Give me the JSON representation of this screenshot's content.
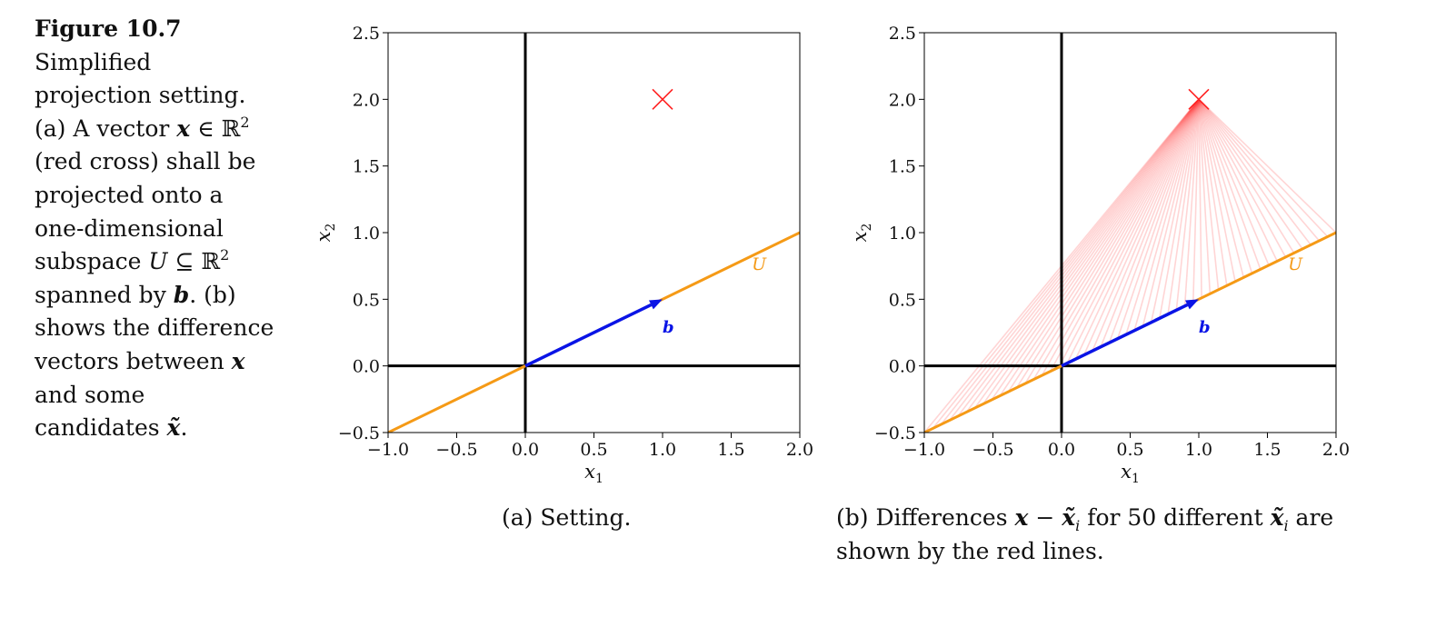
{
  "figure": {
    "label": "Figure 10.7",
    "caption_lines": [
      "Simplified",
      "projection setting."
    ],
    "caption_parts": {
      "a_prefix": "(a) A vector ",
      "x": "x",
      "in_r2": " ∈ ℝ",
      "sup2": "2",
      "l3": "(red cross) shall be",
      "l4": "projected onto a",
      "l5": "one-dimensional",
      "l6_pre": "subspace ",
      "U": "U",
      "subset": " ⊆ ℝ",
      "l7_pre": "spanned by ",
      "b": "b",
      "l7_post": ". (b)",
      "l8": "shows the difference",
      "l9_pre": "vectors between ",
      "l10": "and some",
      "l11_pre": "candidates ",
      "xt": "x̃",
      "period": "."
    }
  },
  "subcaptions": {
    "a": "(a) Setting.",
    "b_pre": "(b) Differences ",
    "b_x": "x",
    "b_minus": " − ",
    "b_xt": "x̃",
    "b_i": "i",
    "b_mid": " for 50 different ",
    "b_end": " are",
    "b_line2": "shown by the red lines."
  },
  "chart_data": [
    {
      "type": "line",
      "title": "",
      "xlabel": "x_1",
      "ylabel": "x_2",
      "xlim": [
        -1.0,
        2.0
      ],
      "ylim": [
        -0.5,
        2.5
      ],
      "xticks": [
        "−1.0",
        "−0.5",
        "0.0",
        "0.5",
        "1.0",
        "1.5",
        "2.0"
      ],
      "yticks": [
        "−0.5",
        "0.0",
        "0.5",
        "1.0",
        "1.5",
        "2.0",
        "2.5"
      ],
      "subspace_line": {
        "label": "U",
        "color": "#f59a16",
        "x": [
          -1.0,
          2.0
        ],
        "y": [
          -0.5,
          1.0
        ]
      },
      "vector_b": {
        "label": "b",
        "color": "#0a14e6",
        "from": [
          0,
          0
        ],
        "to": [
          1.0,
          0.5
        ]
      },
      "point_x": {
        "color": "#ff2020",
        "marker": "x",
        "value": [
          1.0,
          2.0
        ]
      },
      "difference_lines": 0
    },
    {
      "type": "line",
      "title": "",
      "xlabel": "x_1",
      "ylabel": "x_2",
      "xlim": [
        -1.0,
        2.0
      ],
      "ylim": [
        -0.5,
        2.5
      ],
      "xticks": [
        "−1.0",
        "−0.5",
        "0.0",
        "0.5",
        "1.0",
        "1.5",
        "2.0"
      ],
      "yticks": [
        "−0.5",
        "0.0",
        "0.5",
        "1.0",
        "1.5",
        "2.0",
        "2.5"
      ],
      "subspace_line": {
        "label": "U",
        "color": "#f59a16",
        "x": [
          -1.0,
          2.0
        ],
        "y": [
          -0.5,
          1.0
        ]
      },
      "vector_b": {
        "label": "b",
        "color": "#0a14e6",
        "from": [
          0,
          0
        ],
        "to": [
          1.0,
          0.5
        ]
      },
      "point_x": {
        "color": "#ff2020",
        "marker": "x",
        "value": [
          1.0,
          2.0
        ]
      },
      "difference_lines": 50,
      "difference_color": "#ff4040"
    }
  ]
}
